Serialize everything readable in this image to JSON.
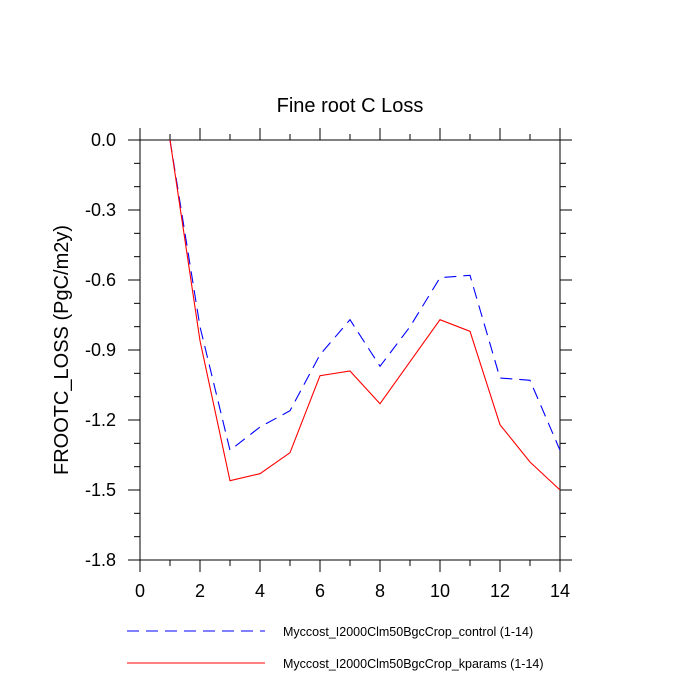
{
  "chart_data": {
    "type": "line",
    "title": "Fine root C Loss",
    "xlabel": "",
    "ylabel": "FROOTC_LOSS  (PgC/m2y)",
    "xlim": [
      0,
      14
    ],
    "ylim": [
      -1.8,
      0.0
    ],
    "xticks": [
      0,
      2,
      4,
      6,
      8,
      10,
      12,
      14
    ],
    "xtick_labels": [
      "0",
      "2",
      "4",
      "6",
      "8",
      "10",
      "12",
      "14"
    ],
    "yticks": [
      0.0,
      -0.3,
      -0.6,
      -0.9,
      -1.2,
      -1.5,
      -1.8
    ],
    "ytick_labels": [
      "0.0",
      "-0.3",
      "-0.6",
      "-0.9",
      "-1.2",
      "-1.5",
      "-1.8"
    ],
    "grid": false,
    "legend_position": "bottom",
    "x": [
      1,
      2,
      3,
      4,
      5,
      6,
      7,
      8,
      9,
      10,
      11,
      12,
      13,
      14
    ],
    "series": [
      {
        "name": "Myccost_I2000Clm50BgcCrop_control (1-14)",
        "color": "#0000ff",
        "dash": "dashed",
        "values": [
          0.0,
          -0.8,
          -1.33,
          -1.23,
          -1.16,
          -0.92,
          -0.77,
          -0.97,
          -0.8,
          -0.59,
          -0.58,
          -1.02,
          -1.03,
          -1.33
        ]
      },
      {
        "name": "Myccost_I2000Clm50BgcCrop_kparams (1-14)",
        "color": "#ff0000",
        "dash": "solid",
        "values": [
          0.0,
          -0.86,
          -1.46,
          -1.43,
          -1.34,
          -1.01,
          -0.99,
          -1.13,
          -0.95,
          -0.77,
          -0.82,
          -1.22,
          -1.38,
          -1.5
        ]
      }
    ]
  }
}
